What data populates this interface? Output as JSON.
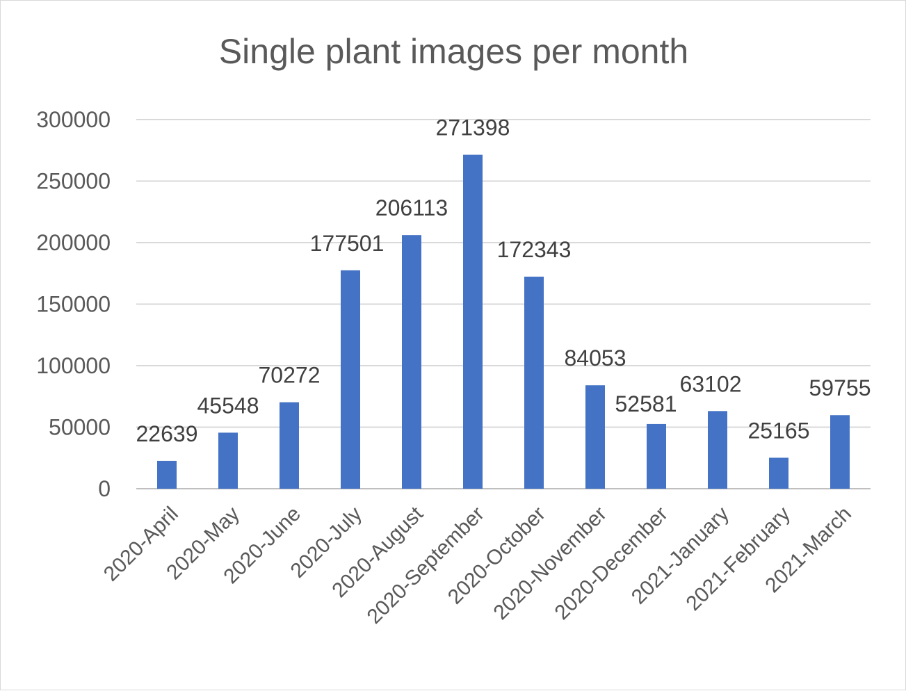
{
  "chart_data": {
    "type": "bar",
    "title": "Single plant images per month",
    "xlabel": "",
    "ylabel": "",
    "categories": [
      "2020-April",
      "2020-May",
      "2020-June",
      "2020-July",
      "2020-August",
      "2020-September",
      "2020-October",
      "2020-November",
      "2020-December",
      "2021-January",
      "2021-February",
      "2021-March"
    ],
    "values": [
      22639,
      45548,
      70272,
      177501,
      206113,
      271398,
      172343,
      84053,
      52581,
      63102,
      25165,
      59755
    ],
    "ylim": [
      0,
      300000
    ],
    "yticks": [
      "0",
      "50000",
      "100000",
      "150000",
      "200000",
      "250000",
      "300000"
    ],
    "grid": true,
    "legend": "none",
    "bar_color": "#4472c4",
    "gridline_color": "#d9d9d9"
  }
}
